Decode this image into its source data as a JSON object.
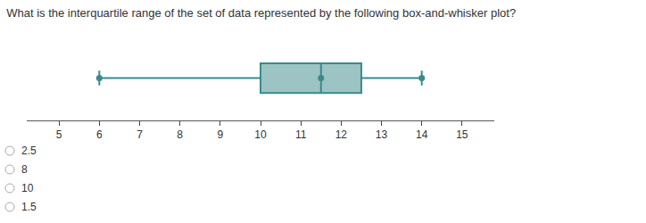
{
  "chart_data": {
    "type": "box",
    "title": "What is the interquartile range of the set of data represented by the following box-and-whisker plot?",
    "min": 6,
    "q1": 10,
    "median": 11.5,
    "q3": 12.5,
    "max": 14,
    "color": "#3a8a8a",
    "xlim": [
      4.2,
      15.8
    ],
    "xticks": [
      5,
      6,
      7,
      8,
      9,
      10,
      11,
      12,
      13,
      14,
      15
    ],
    "grid": false,
    "annotations": [
      "2.5",
      "8",
      "10",
      "1.5"
    ]
  }
}
